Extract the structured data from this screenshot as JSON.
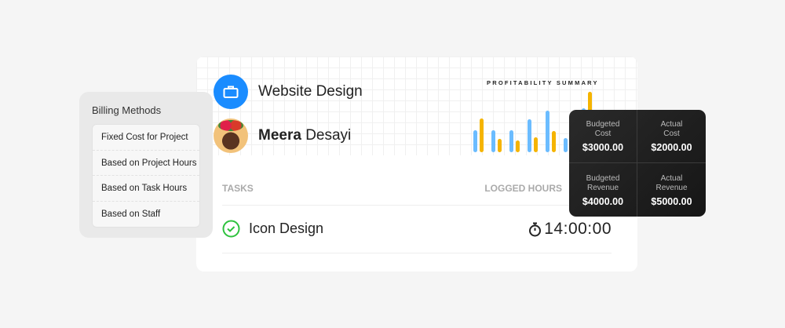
{
  "billing": {
    "title": "Billing Methods",
    "items": [
      "Fixed Cost for Project",
      "Based on Project Hours",
      "Based on Task Hours",
      "Based on Staff"
    ]
  },
  "project": {
    "name": "Website Design",
    "icon": "briefcase-icon",
    "color": "#1a8cff"
  },
  "user": {
    "first": "Meera",
    "last": " Desayi"
  },
  "summary_title": "PROFITABILITY SUMMARY",
  "chart_data": {
    "type": "bar",
    "colors": [
      "#6bbcff",
      "#f5b400"
    ],
    "series": [
      {
        "values": [
          28,
          28,
          28,
          42,
          53,
          18,
          56
        ]
      },
      {
        "values": [
          43,
          17,
          15,
          19,
          27,
          28,
          77
        ]
      }
    ]
  },
  "table": {
    "col_tasks": "TASKS",
    "col_logged": "LOGGED HOURS",
    "task": "Icon Design",
    "time": "14:00:00",
    "check_color": "#2ec23e"
  },
  "tooltip": [
    {
      "label1": "Budgeted",
      "label2": "Cost",
      "value": "$3000.00"
    },
    {
      "label1": "Actual",
      "label2": "Cost",
      "value": "$2000.00"
    },
    {
      "label1": "Budgeted",
      "label2": "Revenue",
      "value": "$4000.00"
    },
    {
      "label1": "Actual",
      "label2": "Revenue",
      "value": "$5000.00"
    }
  ]
}
